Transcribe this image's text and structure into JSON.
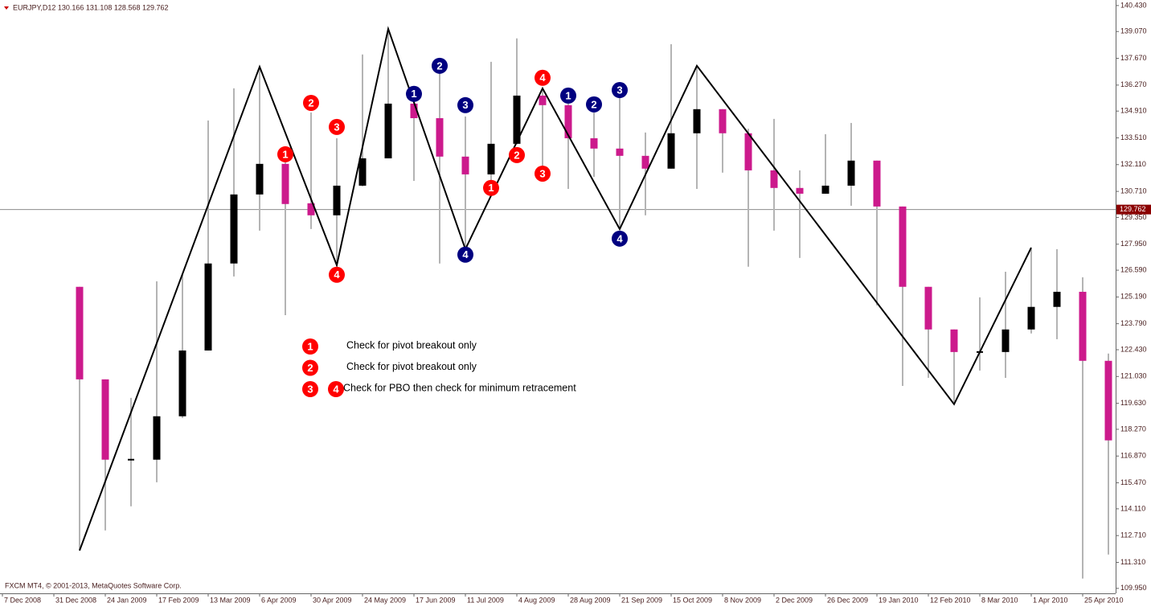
{
  "chart_data": {
    "type": "candlestick",
    "header": "EURJPY,D12  130.166 131.108 128.568 129.762",
    "footer": "FXCM MT4, © 2001-2013, MetaQuotes Software Corp.",
    "categories": [
      "7 Dec 2008",
      null,
      "31 Dec 2008",
      null,
      "24 Jan 2009",
      null,
      "17 Feb 2009",
      null,
      "13 Mar 2009",
      null,
      "6 Apr 2009",
      null,
      "30 Apr 2009",
      null,
      "24 May 2009",
      null,
      "17 Jun 2009",
      null,
      "11 Jul 2009",
      null,
      "4 Aug 2009",
      null,
      "28 Aug 2009",
      null,
      "21 Sep 2009",
      null,
      "15 Oct 2009",
      null,
      "8 Nov 2009",
      null,
      "2 Dec 2009",
      null,
      "26 Dec 2009",
      null,
      "19 Jan 2010",
      null,
      "12 Feb 2010",
      null,
      "8 Mar 2010",
      null,
      "1 Apr 2010",
      null,
      "25 Apr 2010",
      null
    ],
    "open": [
      null,
      null,
      null,
      125.72,
      120.88,
      116.68,
      116.68,
      118.95,
      122.39,
      126.94,
      130.55,
      132.15,
      130.09,
      129.46,
      131.01,
      132.44,
      135.3,
      134.54,
      132.53,
      131.6,
      133.2,
      135.72,
      135.22,
      133.49,
      132.95,
      132.57,
      131.9,
      133.75,
      135.01,
      133.75,
      131.81,
      130.89,
      130.59,
      131.01,
      132.32,
      129.92,
      125.72,
      123.49,
      122.31,
      122.31,
      123.49,
      124.67,
      125.46,
      121.85
    ],
    "high": [
      null,
      null,
      null,
      125.72,
      120.88,
      119.91,
      126.01,
      126.43,
      134.42,
      136.1,
      137.23,
      132.65,
      134.84,
      133.49,
      137.87,
      139.21,
      136.1,
      137.36,
      134.63,
      137.49,
      138.71,
      136.1,
      135.89,
      134.84,
      135.89,
      133.79,
      138.41,
      137.28,
      135.01,
      133.99,
      134.5,
      131.81,
      133.7,
      134.29,
      132.32,
      129.92,
      125.72,
      123.49,
      125.17,
      126.51,
      127.69,
      127.69,
      126.22,
      122.23
    ],
    "low": [
      null,
      null,
      null,
      111.93,
      112.98,
      114.24,
      115.5,
      118.86,
      122.39,
      126.26,
      128.66,
      124.24,
      128.74,
      126.85,
      130.97,
      132.44,
      131.26,
      126.94,
      127.69,
      131.26,
      133.16,
      131.69,
      130.84,
      131.47,
      128.74,
      129.46,
      131.9,
      130.84,
      131.69,
      126.77,
      128.66,
      127.23,
      130.59,
      129.96,
      124.75,
      120.54,
      120.96,
      119.7,
      121.34,
      120.96,
      123.28,
      122.98,
      110.46,
      111.72
    ],
    "close": [
      null,
      null,
      null,
      120.88,
      116.68,
      116.68,
      118.95,
      122.39,
      126.94,
      130.55,
      132.15,
      130.05,
      129.46,
      131.01,
      132.44,
      135.3,
      134.54,
      132.53,
      131.6,
      133.2,
      135.72,
      135.22,
      133.49,
      132.95,
      132.57,
      131.9,
      133.75,
      135.01,
      133.75,
      131.81,
      130.89,
      130.59,
      131.01,
      132.32,
      129.92,
      125.72,
      123.49,
      122.31,
      122.31,
      123.49,
      124.67,
      125.46,
      121.85,
      117.69
    ],
    "up_color": "#000000",
    "down_color": "#cc1a8c",
    "wick_color": "#b4b4b4",
    "zigzag": {
      "x": [
        3,
        10,
        13,
        15,
        18,
        21,
        24,
        27,
        37,
        40
      ],
      "values": [
        111.93,
        137.23,
        126.85,
        139.21,
        127.69,
        136.1,
        128.74,
        137.28,
        119.58,
        127.77
      ],
      "color": "#000000"
    },
    "current_price": 129.762,
    "ylim": [
      109.69,
      140.72
    ],
    "yticks": [
      {
        "value": 140.43,
        "label": "140.430"
      },
      {
        "value": 139.07,
        "label": "139.070"
      },
      {
        "value": 137.67,
        "label": "137.670"
      },
      {
        "value": 136.27,
        "label": "136.270"
      },
      {
        "value": 134.91,
        "label": "134.910"
      },
      {
        "value": 133.51,
        "label": "133.510"
      },
      {
        "value": 132.11,
        "label": "132.110"
      },
      {
        "value": 130.71,
        "label": "130.710"
      },
      {
        "value": 129.35,
        "label": "129.350"
      },
      {
        "value": 127.95,
        "label": "127.950"
      },
      {
        "value": 126.59,
        "label": "126.590"
      },
      {
        "value": 125.19,
        "label": "125.190"
      },
      {
        "value": 123.79,
        "label": "123.790"
      },
      {
        "value": 122.43,
        "label": "122.430"
      },
      {
        "value": 121.03,
        "label": "121.030"
      },
      {
        "value": 119.63,
        "label": "119.630"
      },
      {
        "value": 118.27,
        "label": "118.270"
      },
      {
        "value": 116.87,
        "label": "116.870"
      },
      {
        "value": 115.47,
        "label": "115.470"
      },
      {
        "value": 114.11,
        "label": "114.110"
      },
      {
        "value": 112.71,
        "label": "112.710"
      },
      {
        "value": 111.31,
        "label": "111.310"
      },
      {
        "value": 109.95,
        "label": "109.950"
      }
    ],
    "annotations": [
      {
        "x": 11,
        "value": 132.65,
        "label": "1",
        "color": "#ff0000"
      },
      {
        "x": 12,
        "value": 135.34,
        "label": "2",
        "color": "#ff0000"
      },
      {
        "x": 13,
        "value": 134.08,
        "label": "3",
        "color": "#ff0000"
      },
      {
        "x": 13,
        "value": 126.35,
        "label": "4",
        "color": "#ff0000"
      },
      {
        "x": 16,
        "value": 135.81,
        "label": "1",
        "color": "#000080"
      },
      {
        "x": 17,
        "value": 137.28,
        "label": "2",
        "color": "#000080"
      },
      {
        "x": 18,
        "value": 135.22,
        "label": "3",
        "color": "#000080"
      },
      {
        "x": 18,
        "value": 127.4,
        "label": "4",
        "color": "#000080"
      },
      {
        "x": 19,
        "value": 130.89,
        "label": "1",
        "color": "#ff0000"
      },
      {
        "x": 20,
        "value": 132.61,
        "label": "2",
        "color": "#ff0000"
      },
      {
        "x": 21,
        "value": 131.64,
        "label": "3",
        "color": "#ff0000"
      },
      {
        "x": 21,
        "value": 136.65,
        "label": "4",
        "color": "#ff0000"
      },
      {
        "x": 22,
        "value": 135.72,
        "label": "1",
        "color": "#000080"
      },
      {
        "x": 23,
        "value": 135.26,
        "label": "2",
        "color": "#000080"
      },
      {
        "x": 24,
        "value": 136.01,
        "label": "3",
        "color": "#000080"
      },
      {
        "x": 24,
        "value": 128.24,
        "label": "4",
        "color": "#000080"
      }
    ],
    "legend_items": [
      {
        "markers": [
          "1"
        ],
        "text": "Check for pivot breakout only"
      },
      {
        "markers": [
          "2"
        ],
        "text": "Check for pivot breakout only"
      },
      {
        "markers": [
          "3",
          "4"
        ],
        "text": "Check for PBO then check for minimum retracement"
      }
    ],
    "legend_color": "#ff0000"
  }
}
